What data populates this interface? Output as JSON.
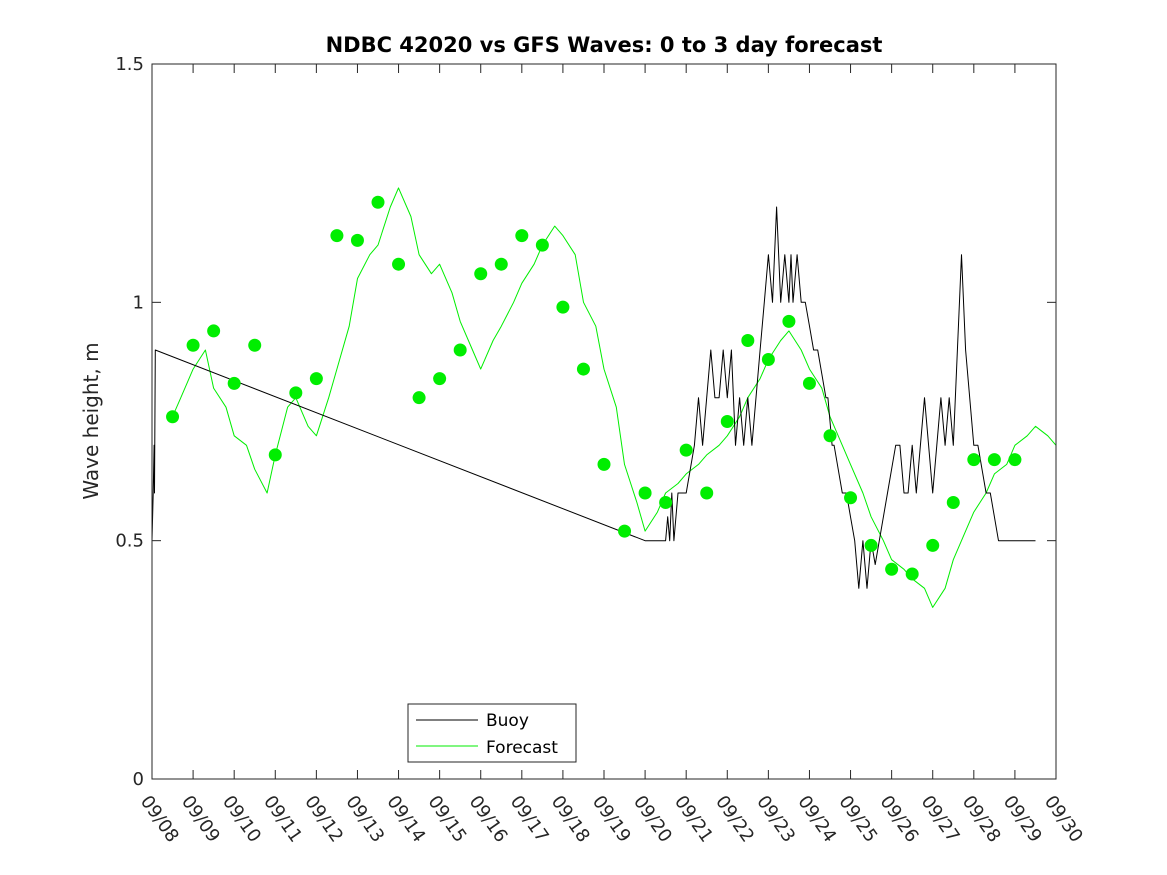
{
  "chart_data": {
    "type": "line",
    "title": "NDBC 42020 vs GFS Waves: 0 to 3 day forecast",
    "xlabel": "",
    "ylabel": "Wave height, m",
    "xlim": [
      0,
      22
    ],
    "ylim": [
      0,
      1.5
    ],
    "x_tick_labels": [
      "09/08",
      "09/09",
      "09/10",
      "09/11",
      "09/12",
      "09/13",
      "09/14",
      "09/15",
      "09/16",
      "09/17",
      "09/18",
      "09/19",
      "09/20",
      "09/21",
      "09/22",
      "09/23",
      "09/24",
      "09/25",
      "09/26",
      "09/27",
      "09/28",
      "09/29",
      "09/30"
    ],
    "y_ticks": [
      0,
      0.5,
      1,
      1.5
    ],
    "y_tick_labels": [
      "0",
      "0.5",
      "1",
      "1.5"
    ],
    "legend": {
      "position": "bottom-center",
      "entries": [
        "Buoy",
        "Forecast"
      ]
    },
    "colors": {
      "buoy": "#000000",
      "forecast": "#00ee00",
      "axis": "#262626"
    },
    "series": [
      {
        "name": "Buoy",
        "x": [
          0,
          0.03,
          0.05,
          0.06,
          0.08,
          12,
          12.5,
          12.55,
          12.6,
          12.65,
          12.7,
          12.8,
          13,
          13.2,
          13.3,
          13.4,
          13.5,
          13.6,
          13.7,
          13.8,
          13.9,
          14,
          14.1,
          14.2,
          14.3,
          14.4,
          14.5,
          14.6,
          14.7,
          14.8,
          14.9,
          15,
          15.1,
          15.2,
          15.3,
          15.4,
          15.5,
          15.55,
          15.6,
          15.7,
          15.8,
          15.9,
          16,
          16.1,
          16.2,
          16.3,
          16.4,
          16.45,
          16.5,
          16.55,
          16.6,
          16.7,
          16.8,
          16.9,
          17,
          17.1,
          17.2,
          17.3,
          17.4,
          17.5,
          17.6,
          17.7,
          17.8,
          17.9,
          18,
          18.1,
          18.2,
          18.3,
          18.4,
          18.5,
          18.6,
          18.7,
          18.8,
          18.9,
          19,
          19.1,
          19.2,
          19.3,
          19.4,
          19.5,
          19.6,
          19.7,
          19.8,
          19.9,
          20,
          20.1,
          20.2,
          20.3,
          20.4,
          20.5,
          20.6,
          20.7,
          20.8,
          20.9,
          21,
          21.1,
          21.2,
          21.3,
          21.5
        ],
        "y": [
          0.5,
          0.6,
          0.7,
          0.6,
          0.9,
          0.5,
          0.5,
          0.55,
          0.5,
          0.6,
          0.5,
          0.6,
          0.6,
          0.7,
          0.8,
          0.7,
          0.8,
          0.9,
          0.8,
          0.8,
          0.9,
          0.8,
          0.9,
          0.7,
          0.8,
          0.7,
          0.8,
          0.7,
          0.8,
          0.9,
          1.0,
          1.1,
          1.0,
          1.2,
          1.0,
          1.1,
          1.0,
          1.1,
          1.0,
          1.1,
          1.0,
          1.0,
          0.95,
          0.9,
          0.9,
          0.85,
          0.8,
          0.8,
          0.75,
          0.7,
          0.7,
          0.65,
          0.6,
          0.6,
          0.55,
          0.5,
          0.4,
          0.5,
          0.4,
          0.5,
          0.45,
          0.5,
          0.55,
          0.6,
          0.65,
          0.7,
          0.7,
          0.6,
          0.6,
          0.7,
          0.6,
          0.7,
          0.8,
          0.7,
          0.6,
          0.7,
          0.8,
          0.7,
          0.8,
          0.7,
          0.9,
          1.1,
          0.9,
          0.8,
          0.7,
          0.7,
          0.65,
          0.6,
          0.6,
          0.55,
          0.5,
          0.5,
          0.5,
          0.5,
          0.5,
          0.5,
          0.5,
          0.5,
          0.5
        ]
      },
      {
        "name": "Forecast",
        "x": [
          0.5,
          0.7,
          1,
          1.3,
          1.5,
          1.8,
          2,
          2.3,
          2.5,
          2.8,
          3,
          3.3,
          3.5,
          3.8,
          4,
          4.3,
          4.5,
          4.8,
          5,
          5.3,
          5.5,
          5.8,
          6,
          6.3,
          6.5,
          6.8,
          7,
          7.3,
          7.5,
          7.8,
          8,
          8.3,
          8.5,
          8.8,
          9,
          9.3,
          9.5,
          9.8,
          10,
          10.3,
          10.5,
          10.8,
          11,
          11.3,
          11.5,
          11.8,
          12,
          12.3,
          12.5,
          12.8,
          13,
          13.3,
          13.5,
          13.8,
          14,
          14.3,
          14.5,
          14.8,
          15,
          15.3,
          15.5,
          15.8,
          16,
          16.3,
          16.5,
          16.8,
          17,
          17.3,
          17.5,
          17.8,
          18,
          18.3,
          18.5,
          18.8,
          19,
          19.3,
          19.5,
          19.8,
          20,
          20.3,
          20.5,
          20.8,
          21,
          21.3,
          21.5,
          21.8,
          22
        ],
        "y": [
          0.76,
          0.8,
          0.86,
          0.9,
          0.82,
          0.78,
          0.72,
          0.7,
          0.65,
          0.6,
          0.68,
          0.78,
          0.8,
          0.74,
          0.72,
          0.8,
          0.86,
          0.95,
          1.05,
          1.1,
          1.12,
          1.2,
          1.24,
          1.18,
          1.1,
          1.06,
          1.08,
          1.02,
          0.96,
          0.9,
          0.86,
          0.92,
          0.95,
          1.0,
          1.04,
          1.08,
          1.12,
          1.16,
          1.14,
          1.1,
          1.0,
          0.95,
          0.86,
          0.78,
          0.66,
          0.58,
          0.52,
          0.56,
          0.6,
          0.62,
          0.64,
          0.66,
          0.68,
          0.7,
          0.72,
          0.76,
          0.8,
          0.84,
          0.88,
          0.92,
          0.94,
          0.9,
          0.86,
          0.82,
          0.76,
          0.7,
          0.66,
          0.6,
          0.55,
          0.5,
          0.46,
          0.44,
          0.42,
          0.4,
          0.36,
          0.4,
          0.46,
          0.52,
          0.56,
          0.6,
          0.64,
          0.66,
          0.7,
          0.72,
          0.74,
          0.72,
          0.7
        ]
      }
    ],
    "forecast_markers": {
      "x": [
        0.5,
        1,
        1.5,
        2,
        2.5,
        3,
        3.5,
        4,
        4.5,
        5,
        5.5,
        6,
        6.5,
        7,
        7.5,
        8,
        8.5,
        9,
        9.5,
        10,
        10.5,
        11,
        11.5,
        12,
        12.5,
        13,
        13.5,
        14,
        14.5,
        15,
        15.5,
        16,
        16.5,
        17,
        17.5,
        18,
        18.5,
        19,
        19.5,
        20,
        20.5,
        21
      ],
      "y": [
        0.76,
        0.91,
        0.94,
        0.83,
        0.91,
        0.68,
        0.81,
        0.84,
        1.14,
        1.13,
        1.21,
        1.08,
        0.8,
        0.84,
        0.9,
        1.06,
        1.08,
        1.14,
        1.12,
        0.99,
        0.86,
        0.66,
        0.52,
        0.6,
        0.58,
        0.69,
        0.6,
        0.75,
        0.92,
        0.88,
        0.96,
        0.83,
        0.72,
        0.59,
        0.49,
        0.44,
        0.43,
        0.49,
        0.58,
        0.67,
        0.67,
        0.67
      ]
    }
  }
}
